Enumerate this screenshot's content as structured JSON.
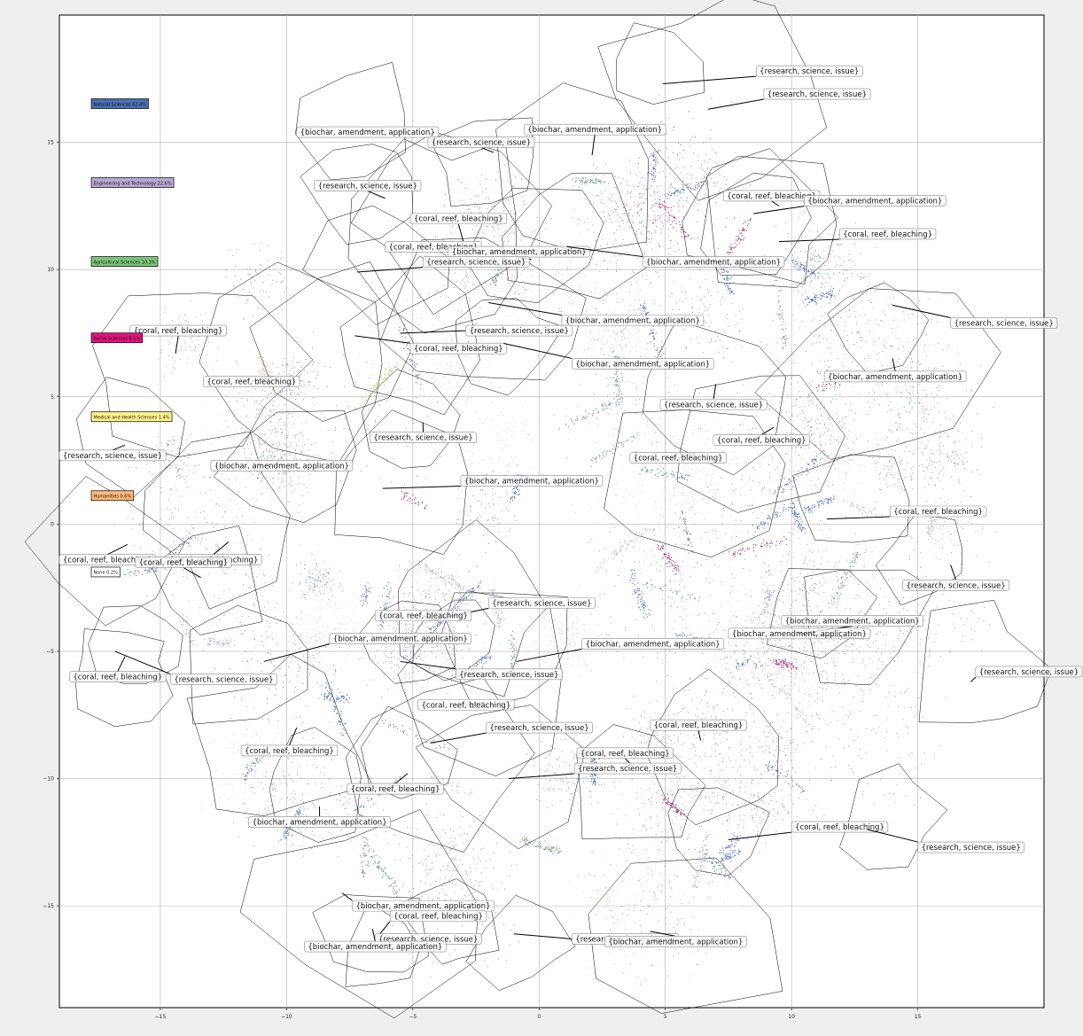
{
  "colors": {
    "background": "#efefef",
    "plot_background": "#ffffff",
    "grid": "#b0b0b0",
    "hull_stroke": "#000000"
  },
  "chart_data": {
    "type": "scatter",
    "title": "",
    "xlabel": "",
    "ylabel": "",
    "xlim": [
      -19,
      20
    ],
    "ylim": [
      -19,
      20
    ],
    "grid": true,
    "x_ticks": [
      -15,
      -10,
      -5,
      0,
      5,
      10,
      15
    ],
    "y_ticks": [
      -15,
      -10,
      -5,
      0,
      5,
      10,
      15
    ],
    "legend_position": "left",
    "legend": [
      {
        "label": "Natural Sciences 62.4%",
        "color": "#4a6fb3",
        "y": 16.5
      },
      {
        "label": "Engineering and Technology 22.6%",
        "color": "#b8a8d4",
        "y": 13.4
      },
      {
        "label": "Agricultural Sciences 10.3%",
        "color": "#7cc47a",
        "y": 10.3
      },
      {
        "label": "Social Sciences 6.1%",
        "color": "#e0137c",
        "y": 7.3
      },
      {
        "label": "Medical and Health Sciences 1.4%",
        "color": "#fff48a",
        "y": 4.2
      },
      {
        "label": "Humanities 0.6%",
        "color": "#fdb97a",
        "y": 1.1
      },
      {
        "label": "None 0.2%",
        "color": "#ffffff",
        "y": -1.9
      }
    ],
    "series": [
      {
        "color": "#4a6fb3",
        "weight": 0.58
      },
      {
        "color": "#b8a8d4",
        "weight": 0.18
      },
      {
        "color": "#5b8f6e",
        "weight": 0.1
      },
      {
        "color": "#a3297a",
        "weight": 0.11
      },
      {
        "color": "#c9c46a",
        "weight": 0.02
      },
      {
        "color": "#d89060",
        "weight": 0.01
      }
    ],
    "annotations": [
      {
        "text": "{research, science, issue}",
        "x": 8.6,
        "y": 17.8,
        "ax": 4.9,
        "ay": 17.3
      },
      {
        "text": "{research, science, issue}",
        "x": 8.9,
        "y": 16.9,
        "ax": 6.7,
        "ay": 16.3
      },
      {
        "text": "{biochar, amendment, application}",
        "x": -9.6,
        "y": 15.4,
        "ax": -6.6,
        "ay": 15.5
      },
      {
        "text": "{biochar, amendment, application}",
        "x": -0.6,
        "y": 15.5,
        "ax": 2.1,
        "ay": 14.5
      },
      {
        "text": "{research, science, issue}",
        "x": -4.4,
        "y": 15.0,
        "ax": -1.8,
        "ay": 14.6
      },
      {
        "text": "{research, science, issue}",
        "x": -8.9,
        "y": 13.3,
        "ax": -6.1,
        "ay": 12.8
      },
      {
        "text": "{coral, reef, bleaching}",
        "x": 7.3,
        "y": 12.9,
        "ax": 9.5,
        "ay": 12.5
      },
      {
        "text": "{biochar, amendment, application}",
        "x": 10.5,
        "y": 12.7,
        "ax": 8.5,
        "ay": 12.2
      },
      {
        "text": "{coral, reef, bleaching}",
        "x": -5.1,
        "y": 12.0,
        "ax": -3.0,
        "ay": 11.1
      },
      {
        "text": "{coral, reef, bleaching}",
        "x": 11.9,
        "y": 11.4,
        "ax": 9.5,
        "ay": 11.1
      },
      {
        "text": "{coral, reef, bleaching}",
        "x": -6.1,
        "y": 10.9,
        "ax": -3.7,
        "ay": 11.0
      },
      {
        "text": "{biochar, amendment, application}",
        "x": -3.6,
        "y": 10.7,
        "ax": -0.3,
        "ay": 10.4
      },
      {
        "text": "{research, science, issue}",
        "x": -4.6,
        "y": 10.3,
        "ax": -7.2,
        "ay": 9.9
      },
      {
        "text": "{biochar, amendment, application}",
        "x": 4.1,
        "y": 10.3,
        "ax": 1.1,
        "ay": 10.9
      },
      {
        "text": "{research, science, issue}",
        "x": 16.3,
        "y": 7.9,
        "ax": 14.0,
        "ay": 8.6
      },
      {
        "text": "{biochar, amendment, application}",
        "x": 0.9,
        "y": 8.0,
        "ax": -2.0,
        "ay": 8.7
      },
      {
        "text": "{coral, reef, bleaching}",
        "x": -16.2,
        "y": 7.6,
        "ax": -14.4,
        "ay": 6.7
      },
      {
        "text": "{research, science, issue}",
        "x": -2.9,
        "y": 7.6,
        "ax": -5.5,
        "ay": 7.5
      },
      {
        "text": "{coral, reef, bleaching}",
        "x": -5.1,
        "y": 6.9,
        "ax": -7.3,
        "ay": 7.4
      },
      {
        "text": "{biochar, amendment, application}",
        "x": 1.3,
        "y": 6.3,
        "ax": -1.4,
        "ay": 7.1
      },
      {
        "text": "{biochar, amendment, application}",
        "x": 11.3,
        "y": 5.8,
        "ax": 14.0,
        "ay": 6.5
      },
      {
        "text": "{coral, reef, bleaching}",
        "x": -13.3,
        "y": 5.6,
        "ax": -10.5,
        "ay": 5.8
      },
      {
        "text": "{research, science, issue}",
        "x": 4.8,
        "y": 4.7,
        "ax": 7.0,
        "ay": 5.5
      },
      {
        "text": "{research, science, issue}",
        "x": -6.7,
        "y": 3.4,
        "ax": -4.6,
        "ay": 4.0
      },
      {
        "text": "{coral, reef, bleaching}",
        "x": 6.9,
        "y": 3.3,
        "ax": 9.3,
        "ay": 3.8
      },
      {
        "text": "{research, science, issue}",
        "x": -19.0,
        "y": 2.7,
        "ax": -16.4,
        "ay": 3.1
      },
      {
        "text": "{coral, reef, bleaching}",
        "x": 3.6,
        "y": 2.6,
        "ax": 6.2,
        "ay": 2.8
      },
      {
        "text": "{biochar, amendment, application}",
        "x": -13.0,
        "y": 2.3,
        "ax": -10.1,
        "ay": 2.2
      },
      {
        "text": "{biochar, amendment, application}",
        "x": -3.1,
        "y": 1.7,
        "ax": -6.2,
        "ay": 1.4
      },
      {
        "text": "{coral, reef, bleaching}",
        "x": 13.9,
        "y": 0.5,
        "ax": 11.4,
        "ay": 0.2
      },
      {
        "text": "{coral, reef, bleaching}",
        "x": -19.0,
        "y": -1.4,
        "ax": -16.3,
        "ay": -0.8
      },
      {
        "text": "{coral, reef, bleaching}",
        "x": -14.8,
        "y": -1.4,
        "ax": -12.3,
        "ay": -0.7
      },
      {
        "text": "{coral, reef, bleaching}",
        "x": -16.0,
        "y": -1.5,
        "ax": -13.4,
        "ay": -2.1
      },
      {
        "text": "{research, science, issue}",
        "x": 14.4,
        "y": -2.4,
        "ax": 16.3,
        "ay": -1.6
      },
      {
        "text": "{research, science, issue}",
        "x": -2.0,
        "y": -3.1,
        "ax": -4.4,
        "ay": -3.8
      },
      {
        "text": "{coral, reef, bleaching}",
        "x": -6.5,
        "y": -3.6,
        "ax": -4.0,
        "ay": -3.8
      },
      {
        "text": "{biochar, amendment, application}",
        "x": 9.6,
        "y": -3.8,
        "ax": 10.3,
        "ay": -4.3
      },
      {
        "text": "{biochar, amendment, application}",
        "x": 7.5,
        "y": -4.3,
        "ax": 12.8,
        "ay": -4.5
      },
      {
        "text": "{biochar, amendment, application}",
        "x": -8.3,
        "y": -4.5,
        "ax": -10.9,
        "ay": -5.4
      },
      {
        "text": "{biochar, amendment, application}",
        "x": 1.7,
        "y": -4.7,
        "ax": -0.9,
        "ay": -5.4
      },
      {
        "text": "{research, science, issue}",
        "x": -3.3,
        "y": -5.9,
        "ax": -5.5,
        "ay": -5.4
      },
      {
        "text": "{research, science, issue}",
        "x": 19.3,
        "y": -5.8,
        "ax": 17.1,
        "ay": -6.2
      },
      {
        "text": "{coral, reef, bleaching}",
        "x": -18.6,
        "y": -6.0,
        "ax": -16.4,
        "ay": -5.2
      },
      {
        "text": "{research, science, issue}",
        "x": -14.6,
        "y": -6.1,
        "ax": -16.8,
        "ay": -5.0
      },
      {
        "text": "{coral, reef, bleaching}",
        "x": -4.8,
        "y": -7.1,
        "ax": -2.1,
        "ay": -7.0
      },
      {
        "text": "{coral, reef, bleaching}",
        "x": 4.4,
        "y": -7.9,
        "ax": 6.4,
        "ay": -8.5
      },
      {
        "text": "{research, science, issue}",
        "x": -2.1,
        "y": -8.0,
        "ax": -4.3,
        "ay": -8.6
      },
      {
        "text": "{coral, reef, bleaching}",
        "x": -11.8,
        "y": -8.9,
        "ax": -9.6,
        "ay": -8.0
      },
      {
        "text": "{coral, reef, bleaching}",
        "x": 1.5,
        "y": -9.0,
        "ax": 3.7,
        "ay": -9.5
      },
      {
        "text": "{research, science, issue}",
        "x": 1.4,
        "y": -9.6,
        "ax": -1.2,
        "ay": -10.0
      },
      {
        "text": "{coral, reef, bleaching}",
        "x": -7.6,
        "y": -10.4,
        "ax": -5.2,
        "ay": -9.8
      },
      {
        "text": "{biochar, amendment, application}",
        "x": -11.5,
        "y": -11.7,
        "ax": -8.7,
        "ay": -11.1
      },
      {
        "text": "{coral, reef, bleaching}",
        "x": 10.0,
        "y": -11.9,
        "ax": 7.5,
        "ay": -12.4
      },
      {
        "text": "{research, science, issue}",
        "x": 15.0,
        "y": -12.7,
        "ax": 13.0,
        "ay": -12.0
      },
      {
        "text": "{biochar, amendment, application}",
        "x": -7.4,
        "y": -15.0,
        "ax": -7.8,
        "ay": -14.5
      },
      {
        "text": "{coral, reef, bleaching}",
        "x": -5.9,
        "y": -15.4,
        "ax": -6.3,
        "ay": -16.1
      },
      {
        "text": "{research, science, issue}",
        "x": -6.5,
        "y": -16.3,
        "ax": -3.9,
        "ay": -16.5
      },
      {
        "text": "{research, science, issue}",
        "x": 1.3,
        "y": -16.3,
        "ax": -1.0,
        "ay": -16.1
      },
      {
        "text": "{biochar, amendment, application}",
        "x": 2.6,
        "y": -16.4,
        "ax": 4.4,
        "ay": -16.0
      },
      {
        "text": "{biochar, amendment, application}",
        "x": -9.3,
        "y": -16.6,
        "ax": -6.6,
        "ay": -15.9
      }
    ]
  }
}
